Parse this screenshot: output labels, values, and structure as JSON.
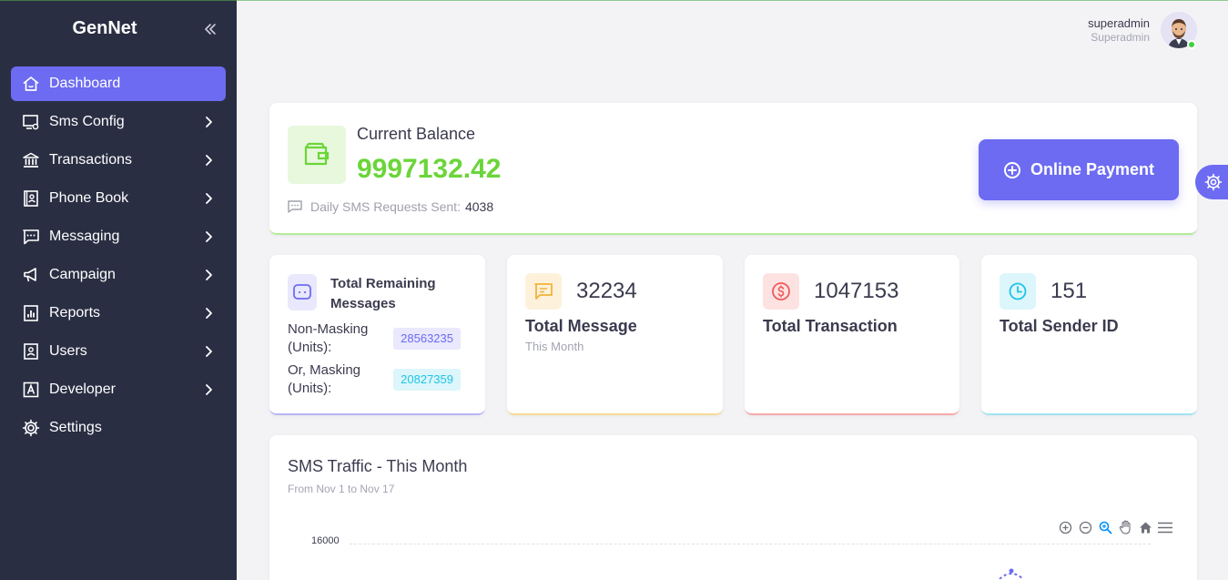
{
  "app": {
    "brand": "GenNet"
  },
  "sidebar": {
    "items": [
      {
        "label": "Dashboard",
        "icon": "home-icon",
        "active": true
      },
      {
        "label": "Sms Config",
        "icon": "monitor-settings-icon"
      },
      {
        "label": "Transactions",
        "icon": "bank-icon"
      },
      {
        "label": "Phone Book",
        "icon": "contacts-book-icon"
      },
      {
        "label": "Messaging",
        "icon": "chat-dots-icon"
      },
      {
        "label": "Campaign",
        "icon": "megaphone-icon"
      },
      {
        "label": "Reports",
        "icon": "report-chart-icon"
      },
      {
        "label": "Users",
        "icon": "user-card-icon"
      },
      {
        "label": "Developer",
        "icon": "letter-a-box-icon"
      },
      {
        "label": "Settings",
        "icon": "gear-icon"
      }
    ]
  },
  "header": {
    "username": "superadmin",
    "role": "Superadmin"
  },
  "balance": {
    "title": "Current Balance",
    "value": "9997132.42",
    "daily_label": "Daily SMS Requests Sent:",
    "daily_value": "4038",
    "pay_label": "Online Payment"
  },
  "stats": {
    "remaining": {
      "title": "Total Remaining Messages",
      "non_masking_label": "Non-Masking (Units):",
      "non_masking_value": "28563235",
      "masking_label": "Or, Masking (Units):",
      "masking_value": "20827359"
    },
    "message": {
      "value": "32234",
      "label": "Total Message",
      "sub": "This Month"
    },
    "transaction": {
      "value": "1047153",
      "label": "Total Transaction"
    },
    "sender": {
      "value": "151",
      "label": "Total Sender ID"
    }
  },
  "traffic": {
    "title": "SMS Traffic - This Month",
    "subtitle": "From Nov 1 to Nov 17",
    "y_tick_top": "16000"
  },
  "colors": {
    "sidebar_bg": "#2a2e43",
    "accent": "#6c6bf2",
    "balance_green": "#6bd53a",
    "online": "#38d23a"
  }
}
